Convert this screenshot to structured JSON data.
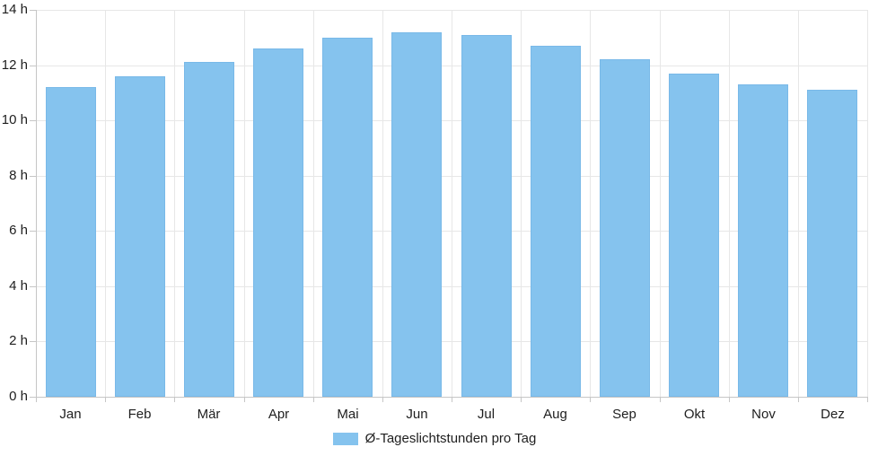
{
  "chart_data": {
    "type": "bar",
    "categories": [
      "Jan",
      "Feb",
      "Mär",
      "Apr",
      "Mai",
      "Jun",
      "Jul",
      "Aug",
      "Sep",
      "Okt",
      "Nov",
      "Dez"
    ],
    "values": [
      11.2,
      11.6,
      12.1,
      12.6,
      13.0,
      13.2,
      13.1,
      12.7,
      12.2,
      11.7,
      11.3,
      11.1
    ],
    "series_name": "Ø-Tageslichtstunden pro Tag",
    "title": "",
    "xlabel": "",
    "ylabel": "",
    "ylim": [
      0,
      14
    ],
    "y_step": 2,
    "y_tick_labels": [
      "0 h",
      "2 h",
      "4 h",
      "6 h",
      "8 h",
      "10 h",
      "12 h",
      "14 h"
    ],
    "grid": true,
    "legend_position": "bottom-center",
    "colors": {
      "bar_fill": "#85c3ee",
      "bar_border": "#79b9e8",
      "gridline": "#e7e7e7",
      "axis": "#c6c6c6",
      "text": "#1e1e1e"
    }
  },
  "legend": {
    "label": "Ø-Tageslichtstunden pro Tag"
  }
}
